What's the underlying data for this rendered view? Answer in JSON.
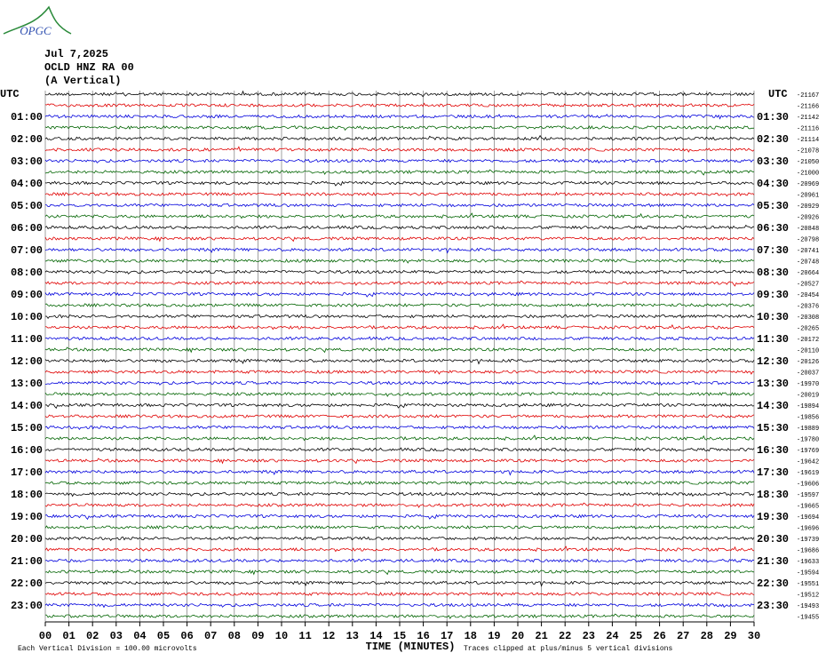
{
  "logo": "OPGC",
  "header": {
    "date": "Jul 7,2025",
    "station": "OCLD HNZ RA 00",
    "component": "(A Vertical)"
  },
  "chart_data": {
    "type": "helicorder",
    "left_axis_title": "UTC",
    "right_axis_title": "UTC",
    "left_labels": [
      "01:00",
      "02:00",
      "03:00",
      "04:00",
      "05:00",
      "06:00",
      "07:00",
      "08:00",
      "09:00",
      "10:00",
      "11:00",
      "12:00",
      "13:00",
      "14:00",
      "15:00",
      "16:00",
      "17:00",
      "18:00",
      "19:00",
      "20:00",
      "21:00",
      "22:00",
      "23:00"
    ],
    "right_labels": [
      "01:30",
      "02:30",
      "03:30",
      "04:30",
      "05:30",
      "06:30",
      "07:30",
      "08:30",
      "09:30",
      "10:30",
      "11:30",
      "12:30",
      "13:30",
      "14:30",
      "15:30",
      "16:30",
      "17:30",
      "18:30",
      "19:30",
      "20:30",
      "21:30",
      "22:30",
      "23:30"
    ],
    "trace_offsets": [
      -21167,
      -21166,
      -21142,
      -21116,
      -21114,
      -21078,
      -21050,
      -21000,
      -20969,
      -20961,
      -20929,
      -20926,
      -20848,
      -20798,
      -20741,
      -20748,
      -20664,
      -20527,
      -20454,
      -20376,
      -20308,
      -20265,
      -20172,
      -20110,
      -20126,
      -20037,
      -19970,
      -20019,
      -19894,
      -19856,
      -19889,
      -19780,
      -19769,
      -19642,
      -19619,
      -19606,
      -19597,
      -19665,
      -19694,
      -19696,
      -19739,
      -19686,
      -19633,
      -19594,
      -19551,
      -19512,
      -19493,
      -19455
    ],
    "trace_colors": [
      "#000000",
      "#e00000",
      "#0000dd",
      "#006400"
    ],
    "xlabel": "TIME (MINUTES)",
    "xlim": [
      0,
      30
    ],
    "xticks": [
      {
        "value": 0,
        "label": "00"
      },
      {
        "value": 1,
        "label": "01"
      },
      {
        "value": 2,
        "label": "02"
      },
      {
        "value": 3,
        "label": "03"
      },
      {
        "value": 4,
        "label": "04"
      },
      {
        "value": 5,
        "label": "05"
      },
      {
        "value": 6,
        "label": "06"
      },
      {
        "value": 7,
        "label": "07"
      },
      {
        "value": 8,
        "label": "08"
      },
      {
        "value": 9,
        "label": "09"
      },
      10,
      11,
      12,
      13,
      14,
      15,
      16,
      17,
      18,
      19,
      20,
      21,
      22,
      23,
      24,
      25,
      26,
      27,
      28,
      29,
      30
    ],
    "grid": true,
    "footer_left": "Each Vertical Division =  100.00 microvolts",
    "footer_right": "Traces clipped at plus/minus 5 vertical divisions"
  }
}
